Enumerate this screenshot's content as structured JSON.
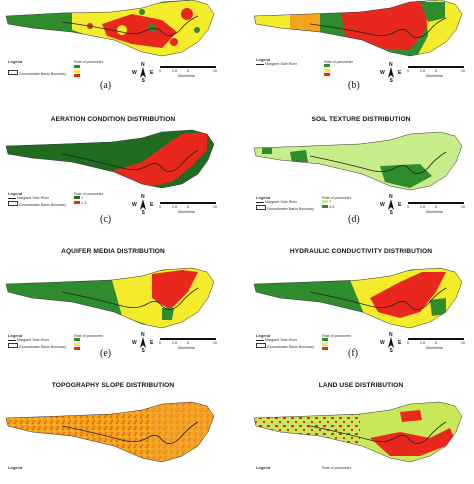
{
  "panels": [
    {
      "id": "a",
      "title": "",
      "label": "(a)",
      "legend_title": "Legend",
      "rate_title": "Rate of parameter",
      "river_label": "",
      "boundary_label": "Groundwater Basin Boundary",
      "rate_entries": [
        "",
        "",
        ""
      ],
      "kilometers_label": "Kilometers",
      "scale_ticks": [
        "0",
        "2.5",
        "5",
        "10"
      ]
    },
    {
      "id": "b",
      "title": "",
      "label": "(b)",
      "legend_title": "Legend",
      "rate_title": "Rate of parameter",
      "river_label": "Margaret Side River",
      "boundary_label": "",
      "rate_entries": [
        "",
        "",
        ""
      ],
      "kilometers_label": "Kilometers",
      "scale_ticks": [
        "0",
        "2.5",
        "5",
        "10"
      ]
    },
    {
      "id": "c",
      "title": "AERATION CONDITION DISTRIBUTION",
      "label": "(c)",
      "legend_title": "Legend",
      "rate_title": "Rate of parameter",
      "river_label": "Margaret Side River",
      "boundary_label": "Groundwater Basin Boundary",
      "rate_entries": [
        "1",
        "1-3"
      ],
      "kilometers_label": "Kilometers",
      "scale_ticks": [
        "0",
        "2.5",
        "5",
        "10"
      ]
    },
    {
      "id": "d",
      "title": "SOIL TEXTURE DISTRIBUTION",
      "label": "(d)",
      "legend_title": "Legend",
      "rate_title": "Rate of parameter",
      "river_label": "Margaret Side River",
      "boundary_label": "Groundwater Basin Boundary",
      "rate_entries": [
        "7",
        "3-5"
      ],
      "kilometers_label": "Kilometers",
      "scale_ticks": [
        "0",
        "2.5",
        "5",
        "10"
      ]
    },
    {
      "id": "e",
      "title": "AQUIFER MEDIA DISTRIBUTION",
      "label": "(e)",
      "legend_title": "Legend",
      "rate_title": "Rate of parameter",
      "river_label": "Margaret Side River",
      "boundary_label": "Groundwater Basin Boundary",
      "rate_entries": [
        "",
        "",
        ""
      ],
      "kilometers_label": "Kilometers",
      "scale_ticks": [
        "0",
        "2.5",
        "5",
        "10"
      ]
    },
    {
      "id": "f",
      "title": "HYDRAULIC CONDUCTIVITY DISTRIBUTION",
      "label": "(f)",
      "legend_title": "Legend",
      "rate_title": "Rate of parameter",
      "river_label": "Margaret Side River",
      "boundary_label": "Groundwater Basin Boundary",
      "rate_entries": [
        "",
        "",
        ""
      ],
      "kilometers_label": "Kilometers",
      "scale_ticks": [
        "0",
        "2.5",
        "5",
        "10"
      ]
    },
    {
      "id": "g",
      "title": "TOPOGRAPHY SLOPE DISTRIBUTION",
      "label": "",
      "legend_title": "Legend",
      "rate_title": "",
      "river_label": "",
      "boundary_label": "",
      "rate_entries": [],
      "kilometers_label": "",
      "scale_ticks": []
    },
    {
      "id": "h",
      "title": "LAND USE DISTRIBUTION",
      "label": "",
      "legend_title": "Legend",
      "rate_title": "Rate of parameter",
      "river_label": "",
      "boundary_label": "",
      "rate_entries": [],
      "kilometers_label": "",
      "scale_ticks": []
    }
  ],
  "compass": {
    "n": "N",
    "s": "S",
    "w": "W",
    "e": "E"
  },
  "colors": {
    "dark_green": "#1f6b1f",
    "green": "#2e8b2e",
    "light_green": "#b8e07a",
    "lime": "#c8e85a",
    "yellow": "#f4ec2a",
    "orange": "#f2a51c",
    "red": "#e8281c",
    "river": "#222222"
  }
}
